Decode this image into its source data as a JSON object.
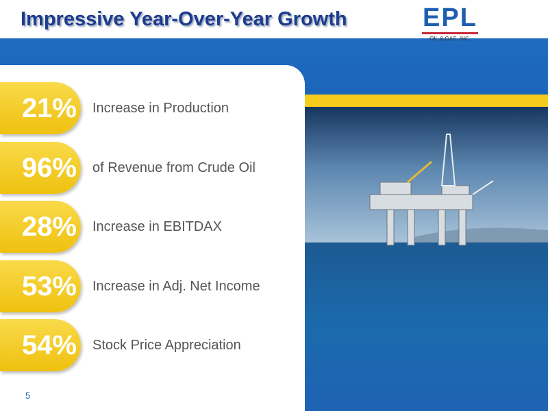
{
  "header": {
    "title": "Impressive Year-Over-Year Growth"
  },
  "logo": {
    "mark": "EPL",
    "subtitle": "OIL & GAS, INC."
  },
  "stats": [
    {
      "value": "21%",
      "label": "Increase in Production"
    },
    {
      "value": "96%",
      "label": "of Revenue from Crude Oil"
    },
    {
      "value": "28%",
      "label": "Increase in EBITDAX"
    },
    {
      "value": "53%",
      "label": "Increase in Adj. Net Income"
    },
    {
      "value": "54%",
      "label": "Stock Price Appreciation"
    }
  ],
  "footer": {
    "page_number": "5"
  }
}
